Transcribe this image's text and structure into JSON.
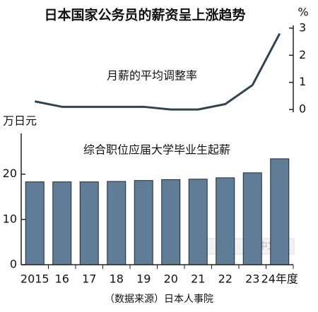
{
  "title": "日本国家公务员的薪资呈上涨趋势",
  "source": "（数据来源）日本人事院",
  "watermark": "中文网",
  "chart_data": [
    {
      "type": "line",
      "subtitle": "月薪的平均调整率",
      "ylabel": "%",
      "values": [
        0.3,
        0.1,
        0.1,
        0.1,
        0.1,
        0.0,
        0.0,
        0.2,
        0.9,
        2.8
      ],
      "color": "#2f4556",
      "ylim": [
        -0.1,
        3.1
      ],
      "yticks": [
        0,
        1,
        2,
        3
      ]
    },
    {
      "type": "bar",
      "subtitle": "综合职位应届大学毕业生起薪",
      "ylabel": "万日元",
      "categories": [
        "2015",
        "16",
        "17",
        "18",
        "19",
        "20",
        "21",
        "22",
        "23",
        "24年度"
      ],
      "values": [
        18.3,
        18.3,
        18.3,
        18.4,
        18.6,
        18.8,
        18.9,
        19.2,
        20.3,
        23.4
      ],
      "color": "#5f7d96",
      "ylim": [
        0,
        29
      ],
      "yticks": [
        0,
        10,
        20
      ]
    }
  ]
}
